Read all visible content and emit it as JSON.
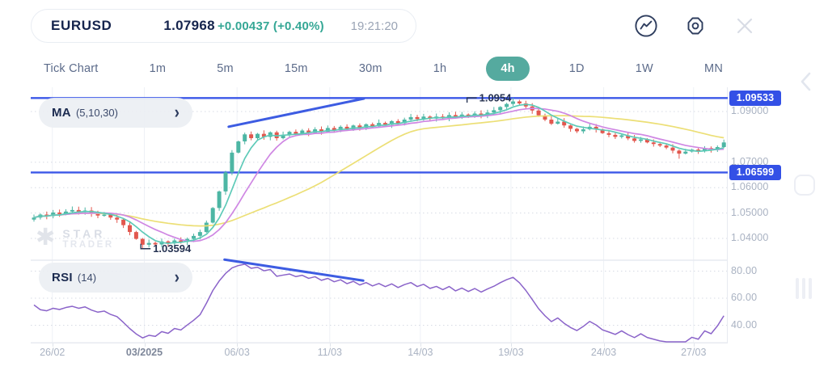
{
  "header": {
    "symbol": "EURUSD",
    "price": "1.07968",
    "change": "+0.00437 (+0.40%)",
    "time": "19:21:20"
  },
  "icons": {
    "chevron_right": "›",
    "star_logo": "✱"
  },
  "timeframes": {
    "items": [
      "Tick Chart",
      "1m",
      "5m",
      "15m",
      "30m",
      "1h",
      "4h",
      "1D",
      "1W",
      "MN"
    ],
    "active": "4h"
  },
  "indicators": {
    "ma": {
      "label": "MA",
      "params": "(5,10,30)"
    },
    "rsi": {
      "label": "RSI",
      "params": "(14)"
    }
  },
  "watermark": {
    "line1": "STAR",
    "line2": "TRADER"
  },
  "chart_data": {
    "type": "candlestick",
    "symbol": "EURUSD",
    "interval": "4h",
    "price_range_visible": [
      1.031,
      1.1
    ],
    "grid": true,
    "candles": {
      "note": "4h closes read off chart, oldest to newest; open of each candle = previous close",
      "closes": [
        1.0482,
        1.0494,
        1.0488,
        1.0502,
        1.0496,
        1.0506,
        1.0512,
        1.0504,
        1.051,
        1.0498,
        1.049,
        1.0494,
        1.0482,
        1.0474,
        1.0452,
        1.0425,
        1.0398,
        1.0375,
        1.0382,
        1.0376,
        1.0388,
        1.038,
        1.0392,
        1.0386,
        1.0398,
        1.041,
        1.0425,
        1.0462,
        1.052,
        1.0585,
        1.066,
        1.0738,
        1.0782,
        1.081,
        1.0795,
        1.0812,
        1.08,
        1.0818,
        1.0795,
        1.0808,
        1.082,
        1.0812,
        1.0825,
        1.0816,
        1.083,
        1.082,
        1.0835,
        1.0826,
        1.084,
        1.083,
        1.0845,
        1.0836,
        1.085,
        1.0842,
        1.0855,
        1.0848,
        1.0862,
        1.0854,
        1.0868,
        1.0878,
        1.087,
        1.088,
        1.0872,
        1.088,
        1.0874,
        1.0886,
        1.0878,
        1.0888,
        1.0882,
        1.0892,
        1.0886,
        1.0896,
        1.0905,
        1.0918,
        1.093,
        1.094,
        1.0932,
        1.092,
        1.0904,
        1.0885,
        1.0868,
        1.0852,
        1.086,
        1.0845,
        1.0832,
        1.0822,
        1.083,
        1.084,
        1.083,
        1.0815,
        1.0808,
        1.08,
        1.0806,
        1.0794,
        1.0784,
        1.079,
        1.0778,
        1.0772,
        1.0766,
        1.0758,
        1.0746,
        1.0734,
        1.0742,
        1.075,
        1.0744,
        1.0756,
        1.0748,
        1.076,
        1.0778
      ],
      "wick_overrides": {
        "17": {
          "low": 1.03594
        },
        "75": {
          "high": 1.0954
        },
        "101": {
          "low": 1.0714
        }
      }
    },
    "moving_averages": [
      {
        "name": "MA5",
        "window": 5,
        "color": "#5ecab8"
      },
      {
        "name": "MA10",
        "window": 10,
        "color": "#cf87e3"
      },
      {
        "name": "MA30",
        "window": 30,
        "color": "#ecdf76"
      }
    ],
    "price_axis": {
      "ticks": [
        {
          "label": "1.09000",
          "value": 1.09
        },
        {
          "label": "1.07000",
          "value": 1.07
        },
        {
          "label": "1.06000",
          "value": 1.06
        },
        {
          "label": "1.05000",
          "value": 1.05
        },
        {
          "label": "1.04000",
          "value": 1.04
        }
      ],
      "levels": [
        {
          "label": "1.09533",
          "value": 1.09533
        },
        {
          "label": "1.06599",
          "value": 1.06599
        }
      ]
    },
    "rsi": {
      "period": 14,
      "ticks": [
        {
          "label": "80.00",
          "value": 80
        },
        {
          "label": "60.00",
          "value": 60
        },
        {
          "label": "40.00",
          "value": 40
        }
      ]
    },
    "date_axis": [
      {
        "label": "26/02",
        "pos": 0.031,
        "bold": false
      },
      {
        "label": "03/2025",
        "pos": 0.163,
        "bold": true
      },
      {
        "label": "06/03",
        "pos": 0.296,
        "bold": false
      },
      {
        "label": "11/03",
        "pos": 0.429,
        "bold": false
      },
      {
        "label": "14/03",
        "pos": 0.559,
        "bold": false
      },
      {
        "label": "19/03",
        "pos": 0.689,
        "bold": false
      },
      {
        "label": "24/03",
        "pos": 0.822,
        "bold": false
      },
      {
        "label": "27/03",
        "pos": 0.951,
        "bold": false
      }
    ],
    "trendlines": [
      {
        "pane": "main",
        "x0": 0.284,
        "y0": 1.084,
        "x1": 0.478,
        "y1": 1.0951
      },
      {
        "pane": "rsi",
        "x0": 0.278,
        "y0": 88.5,
        "x1": 0.477,
        "y1": 73.0
      }
    ],
    "annotations": [
      {
        "label": "1.0954",
        "value": 1.0954,
        "pos": 0.626,
        "dir": "high"
      },
      {
        "label": "1.03594",
        "value": 1.03594,
        "pos": 0.158,
        "dir": "low"
      }
    ],
    "colors": {
      "up": "#4db6a4",
      "down": "#e2574e",
      "level_line": "#3b57e8",
      "trendline": "#3d5ce2",
      "rsi_line": "#8a63c9",
      "grid_v": "#eef1f6",
      "grid_dotted": "#d7dbe4",
      "axis": "#e7eaf0",
      "annotation_text": "#263352"
    }
  }
}
